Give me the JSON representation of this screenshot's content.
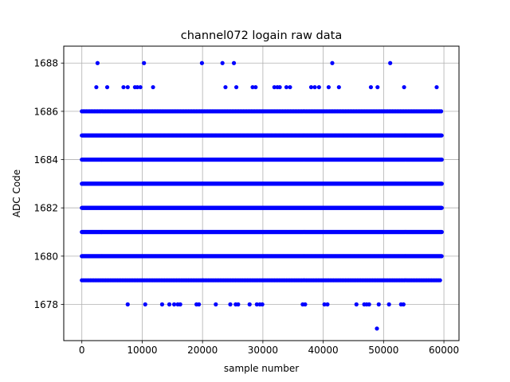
{
  "chart_data": {
    "type": "scatter",
    "title": "channel072 logain raw data",
    "xlabel": "sample number",
    "ylabel": "ADC Code",
    "xlim": [
      -3000,
      62500
    ],
    "ylim": [
      1676.5,
      1688.7
    ],
    "xticks": [
      0,
      10000,
      20000,
      30000,
      40000,
      50000,
      60000
    ],
    "yticks": [
      1678,
      1680,
      1682,
      1684,
      1686,
      1688
    ],
    "grid": true,
    "marker_color": "#0000ff",
    "series": [
      {
        "dense_levels": [
          {
            "y": 1679,
            "x_range": [
              0,
              59500
            ],
            "step": 280
          },
          {
            "y": 1680,
            "x_range": [
              0,
              59700
            ],
            "step": 110
          },
          {
            "y": 1681,
            "x_range": [
              0,
              59700
            ],
            "step": 70
          },
          {
            "y": 1682,
            "x_range": [
              0,
              59700
            ],
            "step": 70
          },
          {
            "y": 1683,
            "x_range": [
              0,
              59700
            ],
            "step": 70
          },
          {
            "y": 1684,
            "x_range": [
              0,
              59700
            ],
            "step": 70
          },
          {
            "y": 1685,
            "x_range": [
              0,
              59700
            ],
            "step": 110
          },
          {
            "y": 1686,
            "x_range": [
              0,
              59700
            ],
            "step": 260
          }
        ],
        "points": [
          {
            "x": 2600,
            "y": 1688
          },
          {
            "x": 10300,
            "y": 1688
          },
          {
            "x": 19900,
            "y": 1688
          },
          {
            "x": 23300,
            "y": 1688
          },
          {
            "x": 25200,
            "y": 1688
          },
          {
            "x": 41500,
            "y": 1688
          },
          {
            "x": 51100,
            "y": 1688
          },
          {
            "x": 2400,
            "y": 1687
          },
          {
            "x": 4200,
            "y": 1687
          },
          {
            "x": 6900,
            "y": 1687
          },
          {
            "x": 7600,
            "y": 1687
          },
          {
            "x": 8800,
            "y": 1687
          },
          {
            "x": 9200,
            "y": 1687
          },
          {
            "x": 9700,
            "y": 1687
          },
          {
            "x": 11800,
            "y": 1687
          },
          {
            "x": 23800,
            "y": 1687
          },
          {
            "x": 25600,
            "y": 1687
          },
          {
            "x": 28300,
            "y": 1687
          },
          {
            "x": 28800,
            "y": 1687
          },
          {
            "x": 31900,
            "y": 1687
          },
          {
            "x": 32400,
            "y": 1687
          },
          {
            "x": 32800,
            "y": 1687
          },
          {
            "x": 33900,
            "y": 1687
          },
          {
            "x": 34500,
            "y": 1687
          },
          {
            "x": 38000,
            "y": 1687
          },
          {
            "x": 38600,
            "y": 1687
          },
          {
            "x": 39300,
            "y": 1687
          },
          {
            "x": 40900,
            "y": 1687
          },
          {
            "x": 42600,
            "y": 1687
          },
          {
            "x": 47900,
            "y": 1687
          },
          {
            "x": 49000,
            "y": 1687
          },
          {
            "x": 53400,
            "y": 1687
          },
          {
            "x": 58800,
            "y": 1687
          },
          {
            "x": 7600,
            "y": 1678
          },
          {
            "x": 10500,
            "y": 1678
          },
          {
            "x": 13300,
            "y": 1678
          },
          {
            "x": 14500,
            "y": 1678
          },
          {
            "x": 15300,
            "y": 1678
          },
          {
            "x": 15900,
            "y": 1678
          },
          {
            "x": 16300,
            "y": 1678
          },
          {
            "x": 19000,
            "y": 1678
          },
          {
            "x": 19400,
            "y": 1678
          },
          {
            "x": 22200,
            "y": 1678
          },
          {
            "x": 24600,
            "y": 1678
          },
          {
            "x": 25500,
            "y": 1678
          },
          {
            "x": 25900,
            "y": 1678
          },
          {
            "x": 27800,
            "y": 1678
          },
          {
            "x": 29000,
            "y": 1678
          },
          {
            "x": 29500,
            "y": 1678
          },
          {
            "x": 29900,
            "y": 1678
          },
          {
            "x": 36600,
            "y": 1678
          },
          {
            "x": 37000,
            "y": 1678
          },
          {
            "x": 40200,
            "y": 1678
          },
          {
            "x": 40700,
            "y": 1678
          },
          {
            "x": 45500,
            "y": 1678
          },
          {
            "x": 46800,
            "y": 1678
          },
          {
            "x": 47200,
            "y": 1678
          },
          {
            "x": 47600,
            "y": 1678
          },
          {
            "x": 49200,
            "y": 1678
          },
          {
            "x": 50900,
            "y": 1678
          },
          {
            "x": 52900,
            "y": 1678
          },
          {
            "x": 53300,
            "y": 1678
          },
          {
            "x": 48900,
            "y": 1677
          }
        ]
      }
    ]
  }
}
